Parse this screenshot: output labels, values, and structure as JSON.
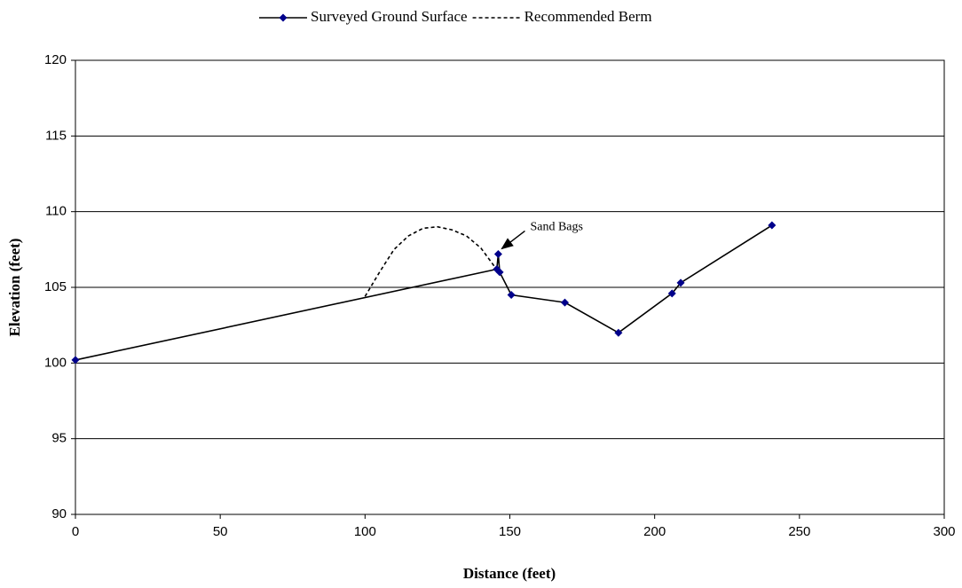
{
  "chart_data": {
    "type": "line",
    "x_label": "Distance (feet)",
    "y_label": "Elevation (feet)",
    "xlim": [
      0,
      300
    ],
    "xticks": [
      0,
      50,
      100,
      150,
      200,
      250,
      300
    ],
    "ylim": [
      90,
      120
    ],
    "yticks": [
      90,
      95,
      100,
      105,
      110,
      115,
      120
    ],
    "grid": true,
    "legend": "top",
    "series": [
      {
        "name": "Surveyed Ground Surface",
        "color": "#000000",
        "marker_color": "#00008b",
        "marker": "diamond",
        "dash": false,
        "x": [
          0,
          145.5,
          146,
          146.5,
          150.5,
          169,
          187.5,
          206,
          209,
          240.5
        ],
        "values": [
          100.2,
          106.2,
          107.2,
          106.0,
          104.5,
          104.0,
          102.0,
          104.6,
          105.3,
          109.1
        ]
      },
      {
        "name": "Recommended Berm",
        "color": "#000000",
        "dash": true,
        "x": [
          100,
          105,
          110,
          115,
          120,
          125,
          130,
          135,
          140,
          145
        ],
        "values": [
          104.4,
          106.0,
          107.5,
          108.4,
          108.9,
          109.0,
          108.8,
          108.4,
          107.6,
          106.3
        ]
      }
    ],
    "annotations": [
      {
        "text": "Sand Bags",
        "series": 0,
        "point": 2
      }
    ]
  }
}
